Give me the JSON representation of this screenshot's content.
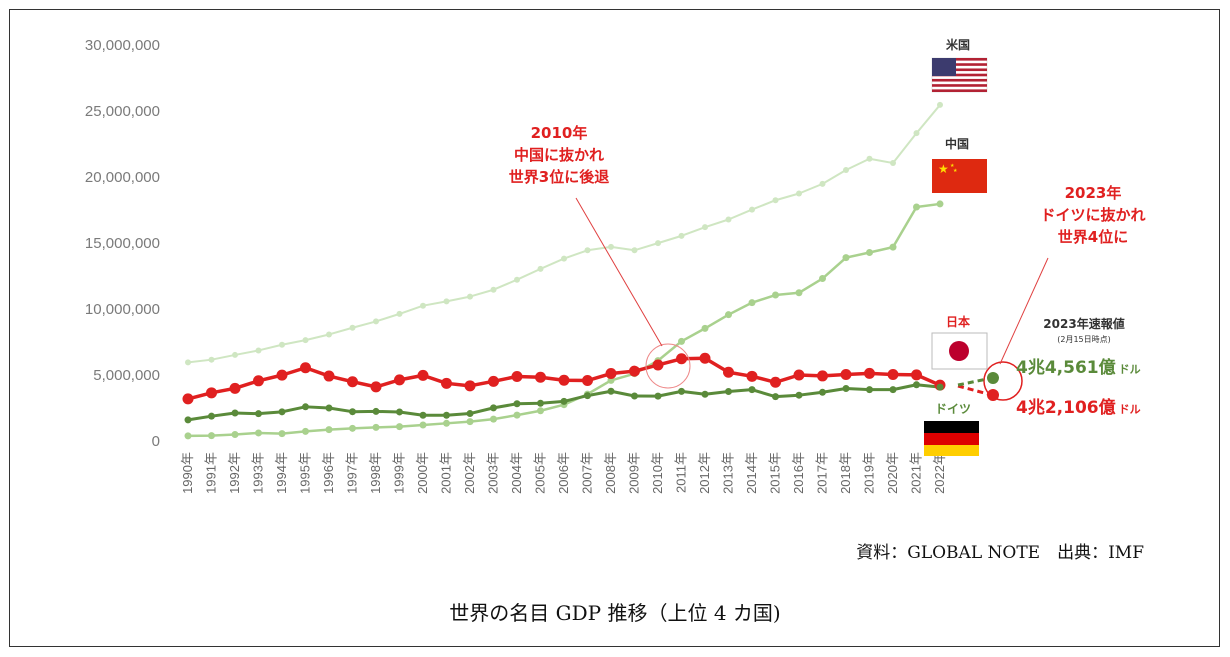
{
  "chart_data": {
    "type": "line",
    "title": "世界の名目 GDP 推移（上位 4 カ国)",
    "source": "資料：GLOBAL NOTE　出典：IMF",
    "ylim": [
      0,
      30000000
    ],
    "yticks": [
      "30,000,000",
      "25,000,000",
      "20,000,000",
      "15,000,000",
      "10,000,000",
      "5,000,000",
      "0"
    ],
    "ytick_values": [
      30000000,
      25000000,
      20000000,
      15000000,
      10000000,
      5000000,
      0
    ],
    "categories": [
      "1990年",
      "1991年",
      "1992年",
      "1993年",
      "1994年",
      "1995年",
      "1996年",
      "1997年",
      "1998年",
      "1999年",
      "2000年",
      "2001年",
      "2002年",
      "2003年",
      "2004年",
      "2005年",
      "2006年",
      "2007年",
      "2008年",
      "2009年",
      "2010年",
      "2011年",
      "2012年",
      "2013年",
      "2014年",
      "2015年",
      "2016年",
      "2017年",
      "2018年",
      "2019年",
      "2020年",
      "2021年",
      "2022年"
    ],
    "series": [
      {
        "name": "米国",
        "color": "#cfe6c2",
        "values": [
          5960000,
          6160000,
          6520000,
          6860000,
          7290000,
          7640000,
          8070000,
          8580000,
          9060000,
          9630000,
          10250000,
          10580000,
          10940000,
          11460000,
          12220000,
          13040000,
          13820000,
          14450000,
          14710000,
          14450000,
          14990000,
          15540000,
          16200000,
          16780000,
          17530000,
          18240000,
          18750000,
          19480000,
          20530000,
          21380000,
          21060000,
          23320000,
          25460000
        ]
      },
      {
        "name": "中国",
        "color": "#a9d18e",
        "values": [
          390000,
          410000,
          490000,
          610000,
          560000,
          730000,
          860000,
          960000,
          1030000,
          1090000,
          1210000,
          1340000,
          1470000,
          1660000,
          1960000,
          2290000,
          2750000,
          3550000,
          4590000,
          5100000,
          6090000,
          7550000,
          8530000,
          9570000,
          10480000,
          11060000,
          11230000,
          12310000,
          13890000,
          14280000,
          14690000,
          17730000,
          17960000
        ]
      },
      {
        "name": "日本",
        "color": "#e02020",
        "values": [
          3190000,
          3650000,
          3990000,
          4560000,
          4990000,
          5550000,
          4920000,
          4490000,
          4100000,
          4630000,
          4970000,
          4370000,
          4180000,
          4520000,
          4890000,
          4830000,
          4600000,
          4580000,
          5110000,
          5290000,
          5760000,
          6230000,
          6270000,
          5210000,
          4900000,
          4450000,
          5000000,
          4930000,
          5040000,
          5120000,
          5040000,
          5010000,
          4230000
        ]
      },
      {
        "name": "ドイツ",
        "color": "#5a8a3a",
        "values": [
          1600000,
          1880000,
          2120000,
          2070000,
          2210000,
          2590000,
          2500000,
          2220000,
          2240000,
          2200000,
          1950000,
          1950000,
          2080000,
          2510000,
          2820000,
          2860000,
          3000000,
          3440000,
          3770000,
          3410000,
          3400000,
          3760000,
          3540000,
          3750000,
          3890000,
          3360000,
          3470000,
          3690000,
          3980000,
          3890000,
          3890000,
          4260000,
          4080000
        ]
      }
    ],
    "preliminary_2023": [
      {
        "name": "日本",
        "value": 4210600,
        "label": "4兆2,106億",
        "unit": "ドル"
      },
      {
        "name": "ドイツ",
        "value": 4456100,
        "label": "4兆4,561億",
        "unit": "ドル"
      }
    ],
    "annotations": {
      "event_2010": [
        "2010年",
        "中国に抜かれ",
        "世界3位に後退"
      ],
      "event_2023": [
        "2023年",
        "ドイツに抜かれ",
        "世界4位に"
      ],
      "preliminary_title": "2023年速報値",
      "preliminary_note": "(2月15日時点)"
    },
    "flags": {
      "us": {
        "label": "米国",
        "colors": [
          "#b22234",
          "#ffffff",
          "#3c3b6e"
        ],
        "icon": "us-flag-icon"
      },
      "cn": {
        "label": "中国",
        "colors": [
          "#de2910",
          "#ffde00"
        ],
        "icon": "china-flag-icon"
      },
      "jp": {
        "label": "日本",
        "colors": [
          "#ffffff",
          "#bc002d"
        ],
        "icon": "japan-flag-icon"
      },
      "de": {
        "label": "ドイツ",
        "colors": [
          "#000000",
          "#dd0000",
          "#ffce00"
        ],
        "icon": "germany-flag-icon"
      }
    }
  }
}
